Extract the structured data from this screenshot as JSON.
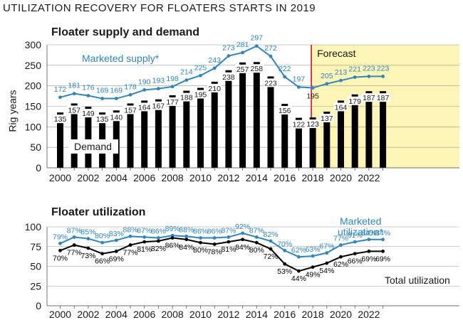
{
  "headline": "UTILIZATION RECOVERY FOR FLOATERS STARTS IN 2019",
  "chart_data": [
    {
      "type": "bar",
      "title": "Floater supply and demand",
      "ylabel": "Rig years",
      "ylim": [
        0,
        300
      ],
      "yticks": [
        "0",
        "50",
        "100",
        "150",
        "200",
        "250",
        "300"
      ],
      "xticks": [
        "2000",
        "2002",
        "2004",
        "2006",
        "2008",
        "2010",
        "2012",
        "2014",
        "2016",
        "2018",
        "2020",
        "2022"
      ],
      "categories": [
        2000,
        2001,
        2002,
        2003,
        2004,
        2005,
        2006,
        2007,
        2008,
        2009,
        2010,
        2011,
        2012,
        2013,
        2014,
        2015,
        2016,
        2017,
        2018,
        2019,
        2020,
        2021,
        2022,
        2023
      ],
      "forecast_start": 2018,
      "forecast_label": "Forecast",
      "colors": {
        "demand": "#000000",
        "supply": "#2e86c1",
        "forecast_bg": "#fdf5b5",
        "forecast_line": "#e32636"
      },
      "series": [
        {
          "name": "Demand",
          "type": "bar",
          "values": [
            135,
            157,
            149,
            135,
            140,
            157,
            164,
            167,
            177,
            188,
            195,
            210,
            238,
            257,
            258,
            223,
            156,
            122,
            123,
            137,
            164,
            179,
            187,
            187
          ]
        },
        {
          "name": "Marketed supply*",
          "type": "line",
          "values": [
            172,
            181,
            176,
            169,
            169,
            178,
            190,
            193,
            198,
            214,
            225,
            243,
            273,
            281,
            297,
            272,
            222,
            197,
            195,
            205,
            213,
            221,
            223,
            223
          ]
        }
      ]
    },
    {
      "type": "line",
      "title": "Floater utilization",
      "ylim": [
        0,
        100
      ],
      "yticks": [
        "0",
        "25",
        "50",
        "75",
        "100"
      ],
      "xticks": [
        "2000",
        "2002",
        "2004",
        "2006",
        "2008",
        "2010",
        "2012",
        "2014",
        "2016",
        "2018",
        "2020",
        "2022"
      ],
      "categories": [
        2000,
        2001,
        2002,
        2003,
        2004,
        2005,
        2006,
        2007,
        2008,
        2009,
        2010,
        2011,
        2012,
        2013,
        2014,
        2015,
        2016,
        2017,
        2018,
        2019,
        2020,
        2021,
        2022,
        2023
      ],
      "colors": {
        "marketed": "#2e86c1",
        "total": "#000000"
      },
      "series": [
        {
          "name": "Marketed utilization*",
          "values": [
            79,
            87,
            85,
            80,
            83,
            88,
            87,
            86,
            89,
            88,
            86,
            86,
            87,
            92,
            87,
            82,
            70,
            62,
            63,
            67,
            77,
            81,
            84,
            84
          ]
        },
        {
          "name": "Total utilization",
          "values": [
            70,
            77,
            73,
            66,
            69,
            77,
            81,
            82,
            86,
            84,
            80,
            78,
            81,
            84,
            80,
            72,
            53,
            44,
            49,
            54,
            62,
            66,
            69,
            69
          ]
        }
      ]
    }
  ]
}
